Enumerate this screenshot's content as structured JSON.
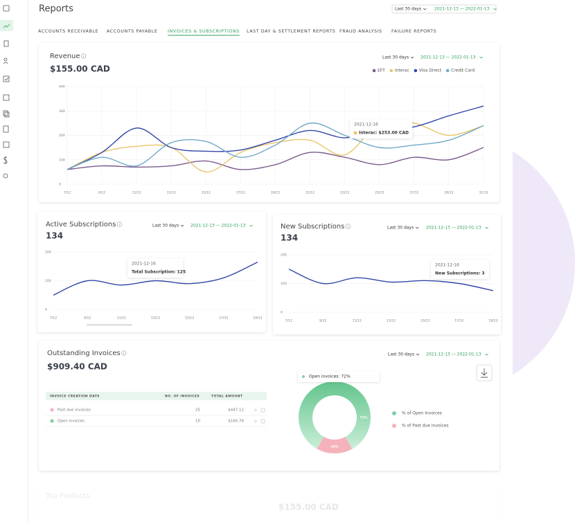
{
  "header": {
    "title": "Reports",
    "range_select": "Last 30 days",
    "date_range": "2021-12-13 — 2022-01-13"
  },
  "tabs": [
    "ACCOUNTS RECEIVABLE",
    "ACCOUNTS PAYABLE",
    "INVOICES & SUBSCRIPTIONS",
    "LAST DAY & SETTLEMENT REPORTS",
    "FRAUD ANALYSIS",
    "FAILURE REPORTS"
  ],
  "active_tab": 2,
  "revenue": {
    "type": "line",
    "title": "Revenue",
    "total": "$155.00 CAD",
    "range_select": "Last 30 days",
    "date_range": "2021-12-13 — 2022-01-13",
    "categories": [
      "7/12",
      "9/12",
      "11/12",
      "13/12",
      "15/12",
      "17/12",
      "19/12",
      "21/12",
      "23/12",
      "25/12",
      "27/12",
      "29/12",
      "31/12"
    ],
    "series": [
      {
        "name": "EFT",
        "color": "#7b5a8c",
        "values": [
          60,
          75,
          70,
          75,
          95,
          60,
          80,
          130,
          110,
          80,
          110,
          100,
          150
        ]
      },
      {
        "name": "Interac",
        "color": "#e9c46a",
        "values": [
          60,
          130,
          155,
          150,
          50,
          130,
          170,
          180,
          120,
          250,
          250,
          200,
          240
        ]
      },
      {
        "name": "Visa Direct",
        "color": "#3346a8",
        "values": [
          60,
          130,
          230,
          150,
          135,
          140,
          180,
          220,
          190,
          220,
          235,
          280,
          320
        ]
      },
      {
        "name": "Credit Card",
        "color": "#6fa8c9",
        "values": [
          60,
          110,
          75,
          170,
          175,
          110,
          160,
          250,
          200,
          150,
          160,
          180,
          240
        ]
      }
    ],
    "ylim": [
      0,
      400
    ],
    "yticks": [
      0,
      100,
      200,
      300,
      400
    ],
    "grid": true,
    "tooltip": {
      "date": "2021-12-16",
      "text": "Interac: $253.00 CAD"
    }
  },
  "active_subscriptions": {
    "type": "line",
    "title": "Active Subscriptions",
    "total": "134",
    "range_select": "Last 30 days",
    "date_range": "2021-12-13 — 2022-01-13",
    "categories": [
      "7/12",
      "9/12",
      "11/12",
      "13/12",
      "15/12",
      "17/12",
      "19/12"
    ],
    "values": [
      50,
      100,
      85,
      100,
      90,
      110,
      165
    ],
    "color": "#3346a8",
    "ylim": [
      0,
      200
    ],
    "yticks": [
      0,
      100,
      200
    ],
    "tooltip": {
      "date": "2021-12-16",
      "text": "Total Subscription: 125"
    }
  },
  "new_subscriptions": {
    "type": "line",
    "title": "New Subscriptions",
    "total": "134",
    "range_select": "Last 30 days",
    "date_range": "2021-12-13 — 2022-01-13",
    "categories": [
      "7/12",
      "9/12",
      "11/12",
      "13/12",
      "15/12",
      "17/12",
      "19/12"
    ],
    "values": [
      150,
      100,
      120,
      105,
      110,
      100,
      75
    ],
    "color": "#3346a8",
    "ylim": [
      0,
      200
    ],
    "yticks": [
      0,
      100,
      200
    ],
    "tooltip": {
      "date": "2021-12-16",
      "text": "New Subscriptions: 3"
    }
  },
  "outstanding": {
    "title": "Outstanding Invoices",
    "total": "$909.40 CAD",
    "range_select": "Last 30 days",
    "date_range": "2021-12-13 — 2022-01-13",
    "table": {
      "columns": [
        "INVOICE CREATION DATE",
        "NO. OF INVOICES",
        "TOTAL AMOUNT"
      ],
      "rows": [
        [
          "Past due invoices",
          25,
          "$447.12"
        ],
        [
          "Open invoices",
          10,
          "$160.76"
        ]
      ]
    },
    "donut": {
      "type": "pie",
      "categories": [
        "% of Open Invoices",
        "% of Past due Invoices"
      ],
      "values": [
        72,
        14
      ],
      "value_labels": [
        "72%",
        "14%"
      ],
      "colors": [
        "#7fd1a3",
        "#f4b3bb"
      ],
      "tooltip": "Open invoices: 72%"
    }
  },
  "top_products": {
    "title": "Top Products",
    "total": "$155.00 CAD"
  }
}
